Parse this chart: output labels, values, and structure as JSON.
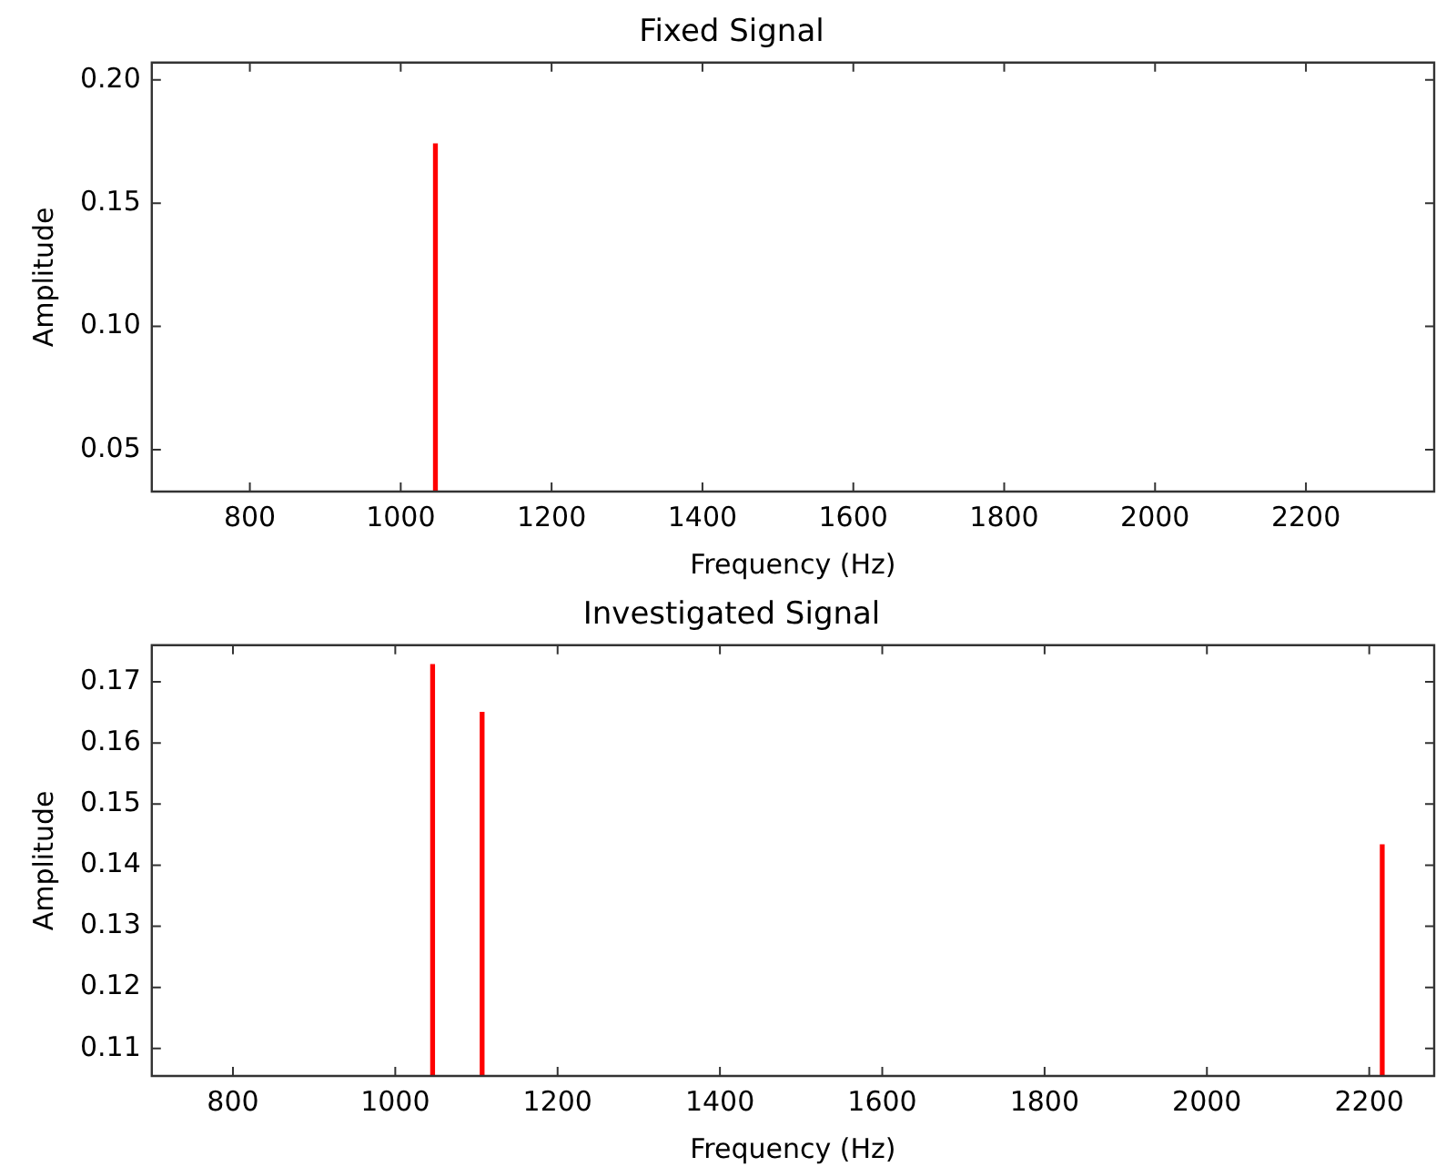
{
  "chart_data": [
    {
      "type": "bar",
      "title": "Fixed Signal",
      "xlabel": "Frequency (Hz)",
      "ylabel": "Amplitude",
      "x": [
        1046
      ],
      "values": [
        0.174
      ],
      "color": "#ff0000",
      "xlim": [
        670,
        2370
      ],
      "xticks": [
        800,
        1000,
        1200,
        1400,
        1600,
        1800,
        2000,
        2200
      ],
      "ylim": [
        0.033,
        0.207
      ],
      "yticks": [
        {
          "value": 0.05,
          "label": "0.05"
        },
        {
          "value": 0.1,
          "label": "0.10"
        },
        {
          "value": 0.15,
          "label": "0.15"
        },
        {
          "value": 0.2,
          "label": "0.20"
        }
      ]
    },
    {
      "type": "bar",
      "title": "Investigated Signal",
      "xlabel": "Frequency (Hz)",
      "ylabel": "Amplitude",
      "x": [
        1046,
        1107,
        2216
      ],
      "values": [
        0.1728,
        0.165,
        0.1433
      ],
      "color": "#ff0000",
      "xlim": [
        700,
        2280
      ],
      "xticks": [
        800,
        1000,
        1200,
        1400,
        1600,
        1800,
        2000,
        2200
      ],
      "ylim": [
        0.1055,
        0.176
      ],
      "yticks": [
        0.11,
        0.12,
        0.13,
        0.14,
        0.15,
        0.16,
        0.17
      ]
    }
  ]
}
